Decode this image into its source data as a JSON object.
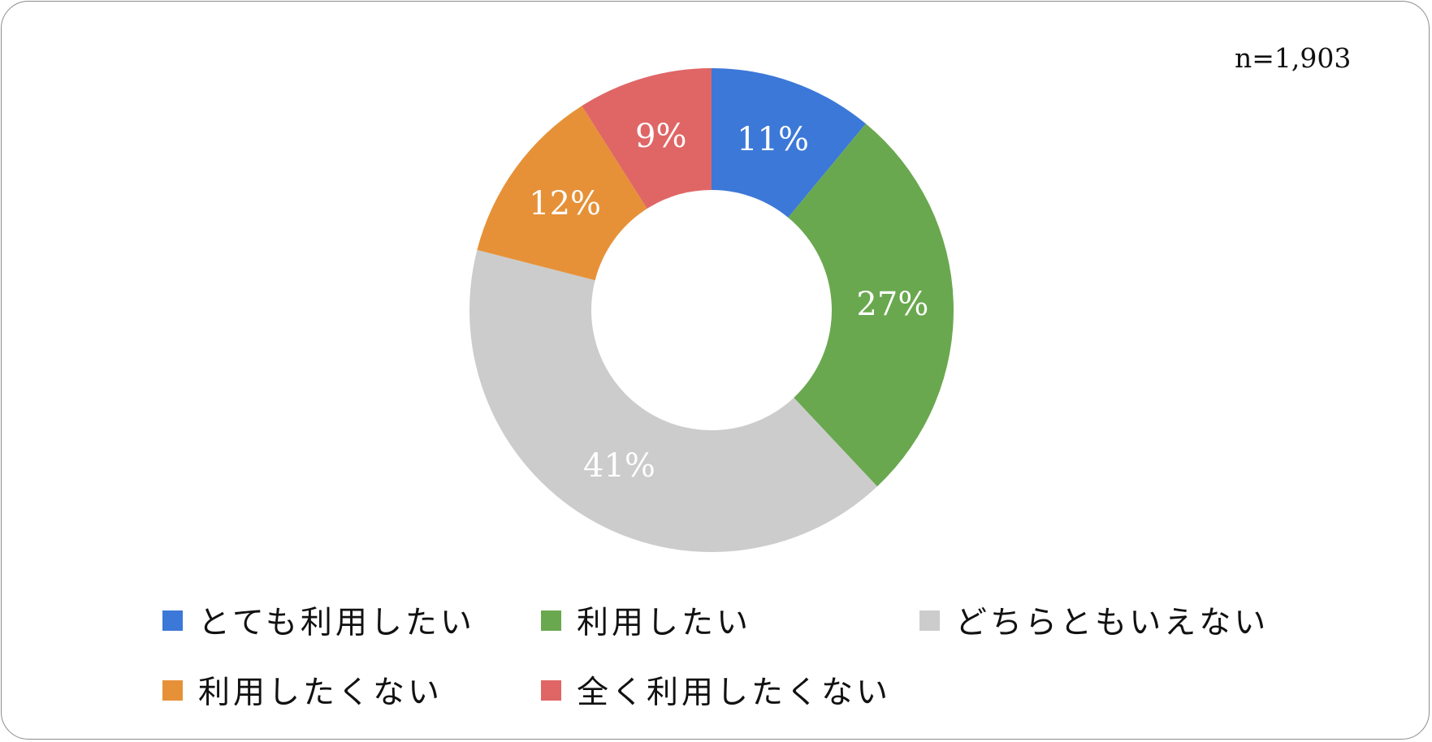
{
  "header": {
    "sample_size": "n=1,903"
  },
  "chart_data": {
    "type": "pie",
    "donut": true,
    "categories": [
      "とても利用したい",
      "利用したい",
      "どちらともいえない",
      "利用したくない",
      "全く利用したくない"
    ],
    "values": [
      11,
      27,
      41,
      12,
      9
    ],
    "value_labels": [
      "11%",
      "27%",
      "41%",
      "12%",
      "9%"
    ],
    "colors": [
      "#3c78d8",
      "#6aa84f",
      "#cccccc",
      "#e69138",
      "#e06666"
    ],
    "legend_position": "bottom"
  },
  "legend": {
    "items": [
      {
        "label": "とても利用したい",
        "color": "#3c78d8"
      },
      {
        "label": "利用したい",
        "color": "#6aa84f"
      },
      {
        "label": "どちらともいえない",
        "color": "#cccccc"
      },
      {
        "label": "利用したくない",
        "color": "#e69138"
      },
      {
        "label": "全く利用したくない",
        "color": "#e06666"
      }
    ]
  }
}
